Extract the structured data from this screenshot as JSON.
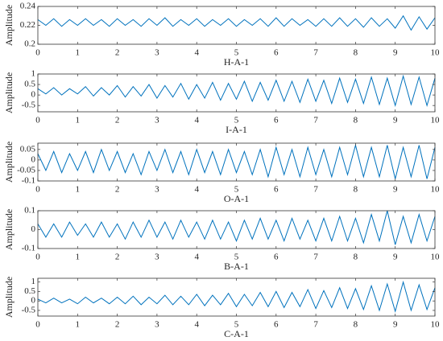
{
  "chart_data": [
    {
      "type": "line",
      "xlabel": "H-A-1",
      "ylabel": "Amplitude",
      "x": [
        0,
        0.2,
        0.4,
        0.6,
        0.8,
        1,
        1.2,
        1.4,
        1.6,
        1.8,
        2,
        2.2,
        2.4,
        2.6,
        2.8,
        3,
        3.2,
        3.4,
        3.6,
        3.8,
        4,
        4.2,
        4.4,
        4.6,
        4.8,
        5,
        5.2,
        5.4,
        5.6,
        5.8,
        6,
        6.2,
        6.4,
        6.6,
        6.8,
        7,
        7.2,
        7.4,
        7.6,
        7.8,
        8,
        8.2,
        8.4,
        8.6,
        8.8,
        9,
        9.2,
        9.4,
        9.6,
        9.8,
        10
      ],
      "series": [
        {
          "color": "#0072bd",
          "values": [
            0.226,
            0.22,
            0.227,
            0.219,
            0.226,
            0.22,
            0.227,
            0.22,
            0.226,
            0.219,
            0.227,
            0.22,
            0.226,
            0.219,
            0.227,
            0.22,
            0.228,
            0.219,
            0.226,
            0.22,
            0.227,
            0.219,
            0.226,
            0.22,
            0.227,
            0.219,
            0.226,
            0.22,
            0.227,
            0.219,
            0.228,
            0.219,
            0.227,
            0.22,
            0.226,
            0.219,
            0.227,
            0.219,
            0.228,
            0.219,
            0.227,
            0.218,
            0.228,
            0.219,
            0.227,
            0.217,
            0.23,
            0.215,
            0.229,
            0.216,
            0.228
          ]
        }
      ],
      "xlim": [
        0,
        10
      ],
      "xticks": [
        0,
        1,
        2,
        3,
        4,
        5,
        6,
        7,
        8,
        9,
        10
      ],
      "ylim": [
        0.2,
        0.24
      ],
      "yticks": [
        0.2,
        0.22,
        0.24
      ]
    },
    {
      "type": "line",
      "xlabel": "I-A-1",
      "ylabel": "Amplitude",
      "x": [
        0,
        0.2,
        0.4,
        0.6,
        0.8,
        1,
        1.2,
        1.4,
        1.6,
        1.8,
        2,
        2.2,
        2.4,
        2.6,
        2.8,
        3,
        3.2,
        3.4,
        3.6,
        3.8,
        4,
        4.2,
        4.4,
        4.6,
        4.8,
        5,
        5.2,
        5.4,
        5.6,
        5.8,
        6,
        6.2,
        6.4,
        6.6,
        6.8,
        7,
        7.2,
        7.4,
        7.6,
        7.8,
        8,
        8.2,
        8.4,
        8.6,
        8.8,
        9,
        9.2,
        9.4,
        9.6,
        9.8,
        10
      ],
      "series": [
        {
          "color": "#0072bd",
          "values": [
            0.3,
            0.05,
            0.35,
            0.0,
            0.3,
            0.05,
            0.4,
            -0.05,
            0.35,
            0.0,
            0.45,
            -0.1,
            0.4,
            -0.05,
            0.5,
            -0.15,
            0.45,
            -0.1,
            0.55,
            -0.2,
            0.5,
            -0.15,
            0.6,
            -0.25,
            0.55,
            -0.2,
            0.65,
            -0.3,
            0.6,
            -0.25,
            0.7,
            -0.3,
            0.65,
            -0.35,
            0.75,
            -0.3,
            0.7,
            -0.4,
            0.8,
            -0.35,
            0.75,
            -0.4,
            0.85,
            -0.45,
            0.8,
            -0.5,
            0.9,
            -0.45,
            0.85,
            -0.5,
            0.8
          ]
        }
      ],
      "xlim": [
        0,
        10
      ],
      "xticks": [
        0,
        1,
        2,
        3,
        4,
        5,
        6,
        7,
        8,
        9,
        10
      ],
      "ylim": [
        -0.8,
        1
      ],
      "yticks": [
        -0.5,
        0,
        0.5,
        1
      ]
    },
    {
      "type": "line",
      "xlabel": "O-A-1",
      "ylabel": "Amplitude",
      "x": [
        0,
        0.2,
        0.4,
        0.6,
        0.8,
        1,
        1.2,
        1.4,
        1.6,
        1.8,
        2,
        2.2,
        2.4,
        2.6,
        2.8,
        3,
        3.2,
        3.4,
        3.6,
        3.8,
        4,
        4.2,
        4.4,
        4.6,
        4.8,
        5,
        5.2,
        5.4,
        5.6,
        5.8,
        6,
        6.2,
        6.4,
        6.6,
        6.8,
        7,
        7.2,
        7.4,
        7.6,
        7.8,
        8,
        8.2,
        8.4,
        8.6,
        8.8,
        9,
        9.2,
        9.4,
        9.6,
        9.8,
        10
      ],
      "series": [
        {
          "color": "#0072bd",
          "values": [
            0.03,
            -0.05,
            0.04,
            -0.06,
            0.03,
            -0.05,
            0.04,
            -0.06,
            0.05,
            -0.05,
            0.04,
            -0.06,
            0.03,
            -0.07,
            0.04,
            -0.05,
            0.05,
            -0.06,
            0.04,
            -0.07,
            0.05,
            -0.06,
            0.04,
            -0.07,
            0.05,
            -0.06,
            0.04,
            -0.07,
            0.05,
            -0.08,
            0.06,
            -0.07,
            0.05,
            -0.08,
            0.06,
            -0.07,
            0.05,
            -0.08,
            0.06,
            -0.07,
            0.07,
            -0.08,
            0.06,
            -0.08,
            0.07,
            -0.09,
            0.06,
            -0.08,
            0.07,
            -0.09,
            0.06
          ]
        }
      ],
      "xlim": [
        0,
        10
      ],
      "xticks": [
        0,
        1,
        2,
        3,
        4,
        5,
        6,
        7,
        8,
        9,
        10
      ],
      "ylim": [
        -0.1,
        0.08
      ],
      "yticks": [
        -0.1,
        -0.05,
        0,
        0.05
      ]
    },
    {
      "type": "line",
      "xlabel": "B-A-1",
      "ylabel": "Amplitude",
      "x": [
        0,
        0.2,
        0.4,
        0.6,
        0.8,
        1,
        1.2,
        1.4,
        1.6,
        1.8,
        2,
        2.2,
        2.4,
        2.6,
        2.8,
        3,
        3.2,
        3.4,
        3.6,
        3.8,
        4,
        4.2,
        4.4,
        4.6,
        4.8,
        5,
        5.2,
        5.4,
        5.6,
        5.8,
        6,
        6.2,
        6.4,
        6.6,
        6.8,
        7,
        7.2,
        7.4,
        7.6,
        7.8,
        8,
        8.2,
        8.4,
        8.6,
        8.8,
        9,
        9.2,
        9.4,
        9.6,
        9.8,
        10
      ],
      "series": [
        {
          "color": "#0072bd",
          "values": [
            0.03,
            -0.04,
            0.03,
            -0.04,
            0.04,
            -0.03,
            0.03,
            -0.04,
            0.04,
            -0.04,
            0.03,
            -0.05,
            0.04,
            -0.04,
            0.05,
            -0.04,
            0.04,
            -0.05,
            0.05,
            -0.04,
            0.04,
            -0.05,
            0.05,
            -0.05,
            0.04,
            -0.06,
            0.05,
            -0.05,
            0.06,
            -0.05,
            0.05,
            -0.06,
            0.06,
            -0.05,
            0.05,
            -0.06,
            0.06,
            -0.06,
            0.07,
            -0.06,
            0.06,
            -0.07,
            0.08,
            -0.06,
            0.1,
            -0.08,
            0.07,
            -0.07,
            0.08,
            -0.06,
            0.07
          ]
        }
      ],
      "xlim": [
        0,
        10
      ],
      "xticks": [
        0,
        1,
        2,
        3,
        4,
        5,
        6,
        7,
        8,
        9,
        10
      ],
      "ylim": [
        -0.1,
        0.1
      ],
      "yticks": [
        -0.1,
        0,
        0.1
      ]
    },
    {
      "type": "line",
      "xlabel": "C-A-1",
      "ylabel": "Amplitude",
      "x": [
        0,
        0.2,
        0.4,
        0.6,
        0.8,
        1,
        1.2,
        1.4,
        1.6,
        1.8,
        2,
        2.2,
        2.4,
        2.6,
        2.8,
        3,
        3.2,
        3.4,
        3.6,
        3.8,
        4,
        4.2,
        4.4,
        4.6,
        4.8,
        5,
        5.2,
        5.4,
        5.6,
        5.8,
        6,
        6.2,
        6.4,
        6.6,
        6.8,
        7,
        7.2,
        7.4,
        7.6,
        7.8,
        8,
        8.2,
        8.4,
        8.6,
        8.8,
        9,
        9.2,
        9.4,
        9.6,
        9.8,
        10
      ],
      "series": [
        {
          "color": "#0072bd",
          "values": [
            0.1,
            -0.1,
            0.15,
            -0.1,
            0.1,
            -0.15,
            0.2,
            -0.1,
            0.15,
            -0.15,
            0.2,
            -0.15,
            0.25,
            -0.2,
            0.2,
            -0.15,
            0.3,
            -0.2,
            0.25,
            -0.2,
            0.35,
            -0.25,
            0.3,
            -0.2,
            0.4,
            -0.3,
            0.35,
            -0.25,
            0.45,
            -0.3,
            0.5,
            -0.35,
            0.45,
            -0.3,
            0.6,
            -0.4,
            0.55,
            -0.35,
            0.7,
            -0.4,
            0.65,
            -0.45,
            0.8,
            -0.5,
            0.9,
            -0.55,
            1.0,
            -0.5,
            0.85,
            -0.45,
            0.7
          ]
        }
      ],
      "xlim": [
        0,
        10
      ],
      "xticks": [
        0,
        1,
        2,
        3,
        4,
        5,
        6,
        7,
        8,
        9,
        10
      ],
      "ylim": [
        -0.8,
        1.2
      ],
      "yticks": [
        -0.5,
        0,
        0.5,
        1
      ]
    }
  ]
}
